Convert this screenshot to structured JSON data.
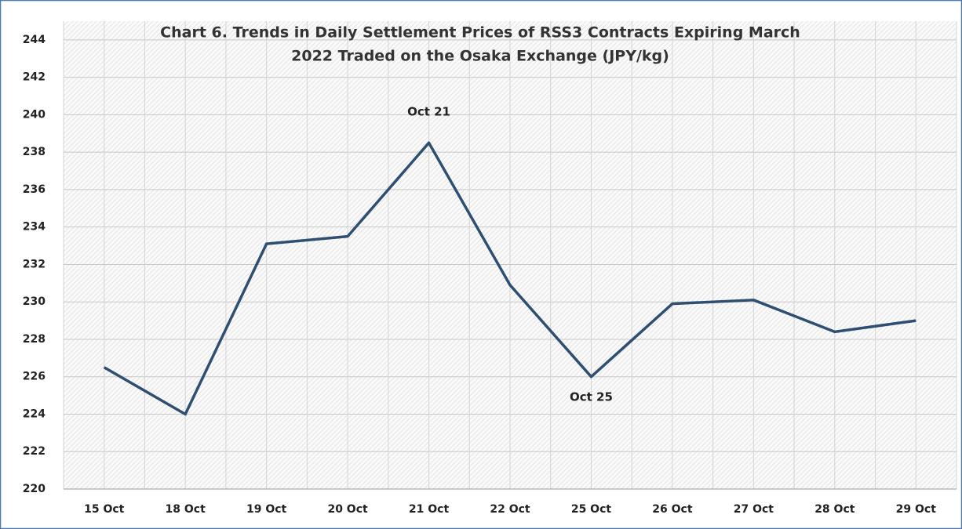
{
  "chart_data": {
    "type": "line",
    "title": [
      "Chart 6. Trends in Daily Settlement Prices of RSS3 Contracts Expiring March",
      "2022 Traded on  the Osaka Exchange (JPY/kg)"
    ],
    "categories": [
      "15 Oct",
      "18 Oct",
      "19 Oct",
      "20 Oct",
      "21 Oct",
      "22 Oct",
      "25 Oct",
      "26 Oct",
      "27 Oct",
      "28 Oct",
      "29 Oct"
    ],
    "series": [
      {
        "name": "RSS3",
        "color": "#2f4f72",
        "values": [
          226.5,
          224.0,
          233.1,
          233.5,
          238.5,
          230.9,
          226.0,
          229.9,
          230.1,
          228.4,
          229.0
        ]
      }
    ],
    "annotations": [
      "Oct 21",
      "Oct 25"
    ],
    "ylim": [
      220,
      245
    ],
    "yticks": [
      220,
      222,
      224,
      226,
      228,
      230,
      232,
      234,
      236,
      238,
      240,
      242,
      244
    ],
    "grid": true
  }
}
